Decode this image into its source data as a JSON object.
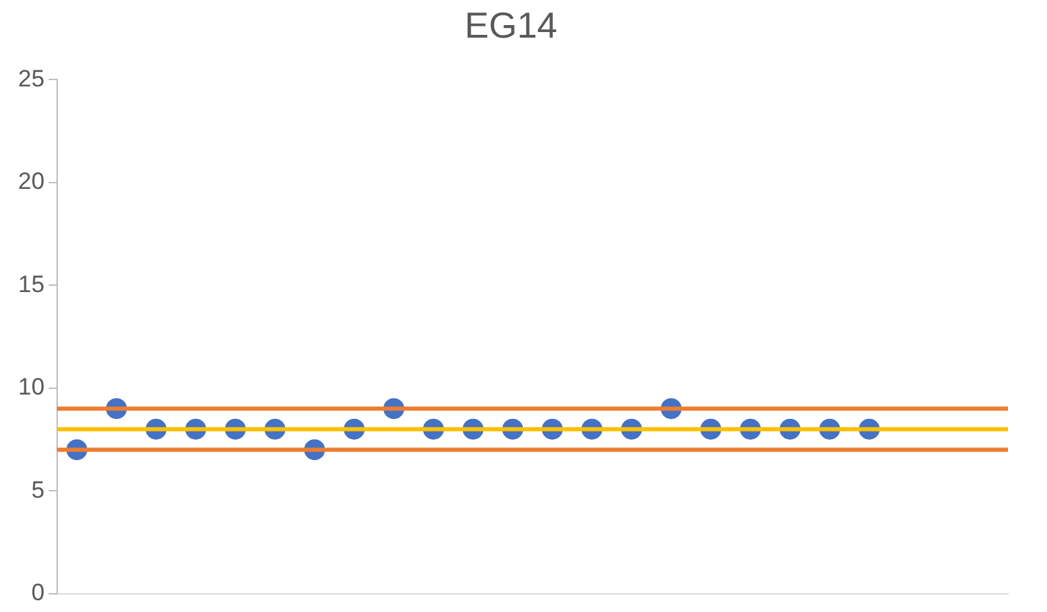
{
  "chart_data": {
    "type": "scatter",
    "title": "EG14",
    "categories": [
      null,
      null,
      null,
      null,
      null,
      null,
      null,
      null,
      null,
      null,
      null,
      null,
      null,
      null,
      null,
      null,
      null,
      null,
      null,
      null,
      null,
      null,
      null,
      null
    ],
    "series": [
      {
        "color": "#4472c4",
        "values": [
          7,
          9,
          8,
          8,
          8,
          8,
          7,
          8,
          9,
          8,
          8,
          8,
          8,
          8,
          8,
          9,
          8,
          8,
          8,
          8,
          8,
          null,
          null,
          null
        ]
      }
    ],
    "ylim": [
      0,
      25
    ],
    "yticks": [
      0,
      5,
      10,
      15,
      20,
      25
    ],
    "tick_labels": "y",
    "grid": false,
    "legend": false,
    "marker": "circle",
    "ref_lines": [
      {
        "axis": "y",
        "value": 9,
        "color": "#ed7d31"
      },
      {
        "axis": "y",
        "value": 8,
        "color": "#ffc000"
      },
      {
        "axis": "y",
        "value": 7,
        "color": "#ed7d31"
      }
    ]
  }
}
